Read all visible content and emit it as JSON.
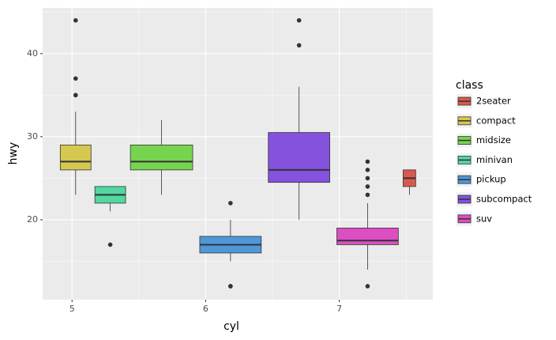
{
  "chart_data": {
    "type": "boxplot",
    "x_label": "cyl",
    "y_label": "hwy",
    "legend_title": "class",
    "xlim": [
      4.78,
      7.7
    ],
    "xticks": [
      5,
      6,
      7
    ],
    "ylim": [
      10.38,
      45.5
    ],
    "yticks": [
      20,
      30,
      40
    ],
    "grid": true,
    "legend_position": "right",
    "series": [
      {
        "name": "2seater",
        "color": "#d9594f",
        "x": 7.525,
        "width": 0.094,
        "whisker_low": 23,
        "q1": 24,
        "median": 25,
        "q3": 26,
        "whisker_high": 26,
        "outliers": []
      },
      {
        "name": "compact",
        "color": "#d5c851",
        "x": 5.027,
        "width": 0.23,
        "whisker_low": 23,
        "q1": 26,
        "median": 27,
        "q3": 29,
        "whisker_high": 33,
        "outliers": [
          35,
          35,
          37,
          44
        ]
      },
      {
        "name": "midsize",
        "color": "#77d44f",
        "x": 5.67,
        "width": 0.466,
        "whisker_low": 23,
        "q1": 26,
        "median": 27,
        "q3": 29,
        "whisker_high": 32,
        "outliers": []
      },
      {
        "name": "minivan",
        "color": "#52d7a0",
        "x": 5.286,
        "width": 0.23,
        "whisker_low": 21,
        "q1": 22,
        "median": 23,
        "q3": 24,
        "whisker_high": 24,
        "outliers": [
          17
        ]
      },
      {
        "name": "pickup",
        "color": "#4f97d8",
        "x": 6.186,
        "width": 0.46,
        "whisker_low": 15,
        "q1": 16,
        "median": 17,
        "q3": 18,
        "whisker_high": 20,
        "outliers": [
          22,
          12,
          12
        ]
      },
      {
        "name": "subcompact",
        "color": "#8452dc",
        "x": 6.699,
        "width": 0.46,
        "whisker_low": 20,
        "q1": 24.5,
        "median": 26,
        "q3": 30.5,
        "whisker_high": 36,
        "outliers": [
          41,
          44
        ]
      },
      {
        "name": "suv",
        "color": "#dc4fc2",
        "x": 7.212,
        "width": 0.46,
        "whisker_low": 14,
        "q1": 17,
        "median": 17.5,
        "q3": 19,
        "whisker_high": 22,
        "outliers": [
          23,
          24,
          25,
          26,
          27,
          12
        ]
      }
    ]
  }
}
